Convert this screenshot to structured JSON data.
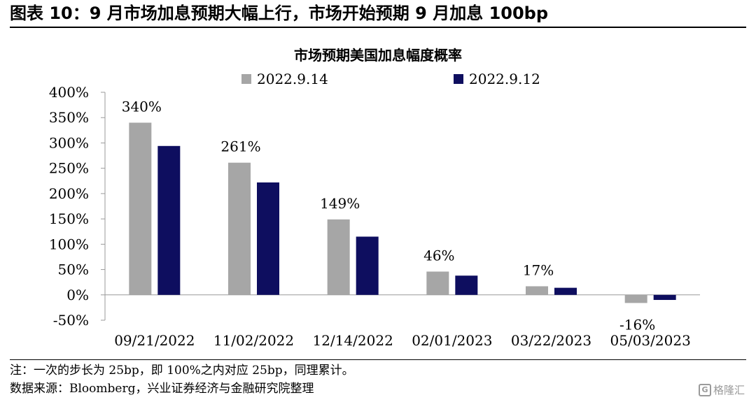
{
  "figure": {
    "title": "图表 10：9 月市场加息预期大幅上行，市场开始预期 9 月加息 100bp",
    "note": "注：一次的步长为 25bp，即 100%之内对应 25bp，同理累计。",
    "source": "数据来源：Bloomberg，兴业证券经济与金融研究院整理",
    "watermark": "格隆汇",
    "watermark_logo": "G"
  },
  "chart_data": {
    "type": "bar",
    "title": "市场预期美国加息幅度概率",
    "categories": [
      "09/21/2022",
      "11/02/2022",
      "12/14/2022",
      "02/01/2023",
      "03/22/2023",
      "05/03/2023"
    ],
    "series": [
      {
        "name": "2022.9.14",
        "color": "#a6a6a6",
        "values": [
          340,
          261,
          149,
          46,
          17,
          -16
        ]
      },
      {
        "name": "2022.9.12",
        "color": "#0e0e5f",
        "values": [
          294,
          222,
          115,
          38,
          14,
          -10
        ]
      }
    ],
    "data_labels": [
      "340%",
      "261%",
      "149%",
      "46%",
      "17%",
      "-16%"
    ],
    "ylim": [
      -50,
      400
    ],
    "yticks": [
      "-50%",
      "0%",
      "50%",
      "100%",
      "150%",
      "200%",
      "250%",
      "300%",
      "350%",
      "400%"
    ],
    "ytick_values": [
      -50,
      0,
      50,
      100,
      150,
      200,
      250,
      300,
      350,
      400
    ],
    "legend_position": "top",
    "grid": false
  }
}
